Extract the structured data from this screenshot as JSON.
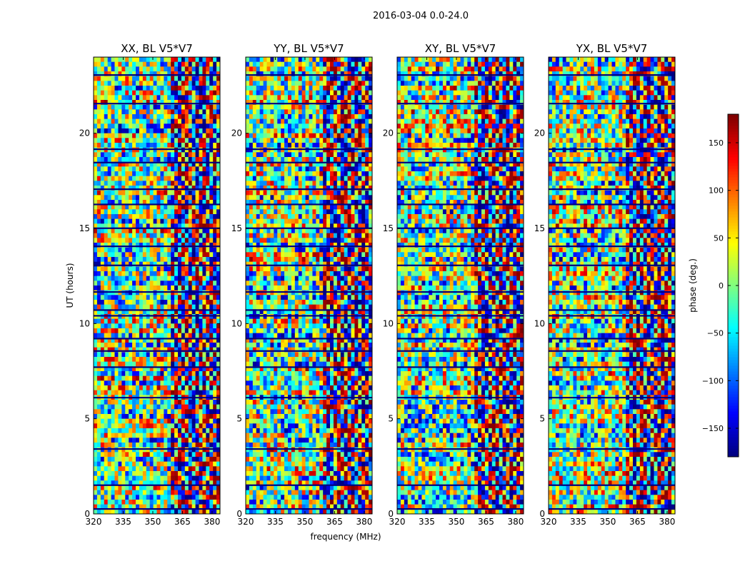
{
  "suptitle": "2016-03-04 0.0-24.0",
  "chart_data": {
    "type": "heatmap",
    "panels": [
      {
        "title": "XX, BL V5*V7",
        "seed": 11
      },
      {
        "title": "YY, BL V5*V7",
        "seed": 23
      },
      {
        "title": "XY, BL V5*V7",
        "seed": 37
      },
      {
        "title": "YX, BL V5*V7",
        "seed": 53
      }
    ],
    "xlabel": "frequency (MHz)",
    "ylabel": "UT (hours)",
    "xlim": [
      320,
      384
    ],
    "ylim": [
      0,
      24
    ],
    "xticks": [
      320,
      335,
      350,
      365,
      380
    ],
    "yticks": [
      0,
      5,
      10,
      15,
      20
    ],
    "colorbar": {
      "label": "phase (deg.)",
      "range": [
        -180,
        180
      ],
      "ticks": [
        -150,
        -100,
        -50,
        0,
        50,
        100,
        150
      ],
      "colormap": "jet"
    },
    "description_values": "phase values in degrees wrapped to [-180,180]"
  }
}
